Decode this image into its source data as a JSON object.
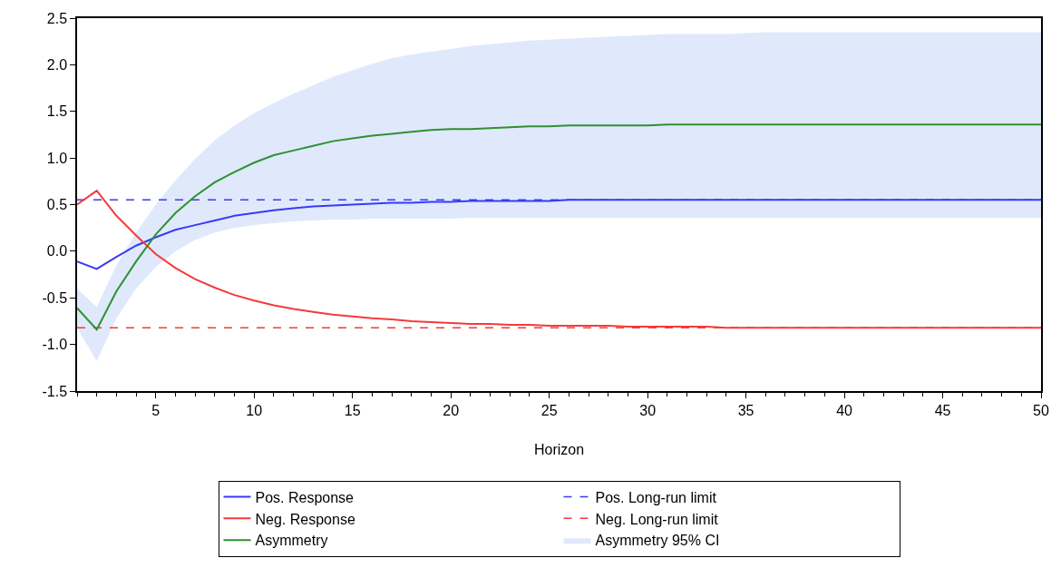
{
  "chart_data": {
    "type": "line",
    "xlabel": "Horizon",
    "annotations": [
      "Asymmetry 95% CI"
    ],
    "x": [
      1,
      2,
      3,
      4,
      5,
      6,
      7,
      8,
      9,
      10,
      11,
      12,
      13,
      14,
      15,
      16,
      17,
      18,
      19,
      20,
      21,
      22,
      23,
      24,
      25,
      26,
      27,
      28,
      29,
      30,
      31,
      32,
      33,
      34,
      35,
      36,
      37,
      38,
      39,
      40,
      41,
      42,
      43,
      44,
      45,
      46,
      47,
      48,
      49,
      50
    ],
    "series": [
      {
        "name": "Pos. Response",
        "color": "#3a3af5",
        "values": [
          -0.11,
          -0.19,
          -0.06,
          0.06,
          0.15,
          0.23,
          0.28,
          0.33,
          0.38,
          0.41,
          0.44,
          0.46,
          0.48,
          0.49,
          0.5,
          0.51,
          0.52,
          0.52,
          0.53,
          0.53,
          0.54,
          0.54,
          0.54,
          0.54,
          0.54,
          0.55,
          0.55,
          0.55,
          0.55,
          0.55,
          0.55,
          0.55,
          0.55,
          0.55,
          0.55,
          0.55,
          0.55,
          0.55,
          0.55,
          0.55,
          0.55,
          0.55,
          0.55,
          0.55,
          0.55,
          0.55,
          0.55,
          0.55,
          0.55,
          0.55
        ]
      },
      {
        "name": "Neg. Response",
        "color": "#f53a3a",
        "values": [
          0.5,
          0.65,
          0.38,
          0.17,
          -0.03,
          -0.18,
          -0.3,
          -0.39,
          -0.47,
          -0.53,
          -0.58,
          -0.62,
          -0.65,
          -0.68,
          -0.7,
          -0.72,
          -0.73,
          -0.75,
          -0.76,
          -0.77,
          -0.78,
          -0.78,
          -0.79,
          -0.79,
          -0.8,
          -0.8,
          -0.8,
          -0.8,
          -0.81,
          -0.81,
          -0.81,
          -0.81,
          -0.81,
          -0.82,
          -0.82,
          -0.82,
          -0.82,
          -0.82,
          -0.82,
          -0.82,
          -0.82,
          -0.82,
          -0.82,
          -0.82,
          -0.82,
          -0.82,
          -0.82,
          -0.82,
          -0.82,
          -0.82
        ]
      },
      {
        "name": "Asymmetry",
        "color": "#2e9132",
        "values": [
          -0.61,
          -0.84,
          -0.43,
          -0.11,
          0.18,
          0.41,
          0.59,
          0.74,
          0.85,
          0.95,
          1.03,
          1.08,
          1.13,
          1.18,
          1.21,
          1.24,
          1.26,
          1.28,
          1.3,
          1.31,
          1.31,
          1.32,
          1.33,
          1.34,
          1.34,
          1.35,
          1.35,
          1.35,
          1.35,
          1.35,
          1.36,
          1.36,
          1.36,
          1.36,
          1.36,
          1.36,
          1.36,
          1.36,
          1.36,
          1.36,
          1.36,
          1.36,
          1.36,
          1.36,
          1.36,
          1.36,
          1.36,
          1.36,
          1.36,
          1.36
        ],
        "lower": [
          -0.82,
          -1.18,
          -0.72,
          -0.4,
          -0.17,
          0.0,
          0.12,
          0.2,
          0.25,
          0.28,
          0.3,
          0.32,
          0.33,
          0.34,
          0.34,
          0.35,
          0.35,
          0.35,
          0.35,
          0.35,
          0.36,
          0.36,
          0.36,
          0.36,
          0.36,
          0.36,
          0.36,
          0.36,
          0.36,
          0.36,
          0.36,
          0.36,
          0.36,
          0.36,
          0.36,
          0.36,
          0.36,
          0.36,
          0.36,
          0.36,
          0.36,
          0.36,
          0.36,
          0.36,
          0.36,
          0.36,
          0.36,
          0.36,
          0.36,
          0.36
        ],
        "upper": [
          -0.4,
          -0.6,
          -0.15,
          0.2,
          0.5,
          0.76,
          0.99,
          1.19,
          1.35,
          1.48,
          1.59,
          1.69,
          1.78,
          1.87,
          1.94,
          2.01,
          2.07,
          2.11,
          2.14,
          2.17,
          2.2,
          2.22,
          2.24,
          2.26,
          2.27,
          2.28,
          2.29,
          2.3,
          2.31,
          2.32,
          2.33,
          2.33,
          2.33,
          2.33,
          2.34,
          2.35,
          2.35,
          2.35,
          2.35,
          2.35,
          2.35,
          2.35,
          2.35,
          2.35,
          2.35,
          2.35,
          2.35,
          2.35,
          2.35,
          2.35
        ]
      }
    ],
    "ref_lines": [
      {
        "axis": "y",
        "value": 0.55,
        "label": "Pos. Long-run limit",
        "color": "#3a3af5",
        "line_style": "dashed"
      },
      {
        "axis": "y",
        "value": -0.82,
        "label": "Neg. Long-run limit",
        "color": "#f53a3a",
        "line_style": "dashed"
      }
    ],
    "xlim": [
      1,
      50
    ],
    "xticks": [
      5,
      10,
      15,
      20,
      25,
      30,
      35,
      40,
      45,
      50
    ],
    "ylim": [
      -1.5,
      2.5
    ],
    "yticks": [
      -1.5,
      {
        "value": -1,
        "label": "-1.0"
      },
      -0.5,
      {
        "value": 0,
        "label": "0.0"
      },
      0.5,
      {
        "value": 1,
        "label": "1.0"
      },
      1.5,
      {
        "value": 2,
        "label": "2.0"
      },
      2.5
    ],
    "legend": "bottom",
    "marker": "none",
    "line_style": "solid"
  }
}
